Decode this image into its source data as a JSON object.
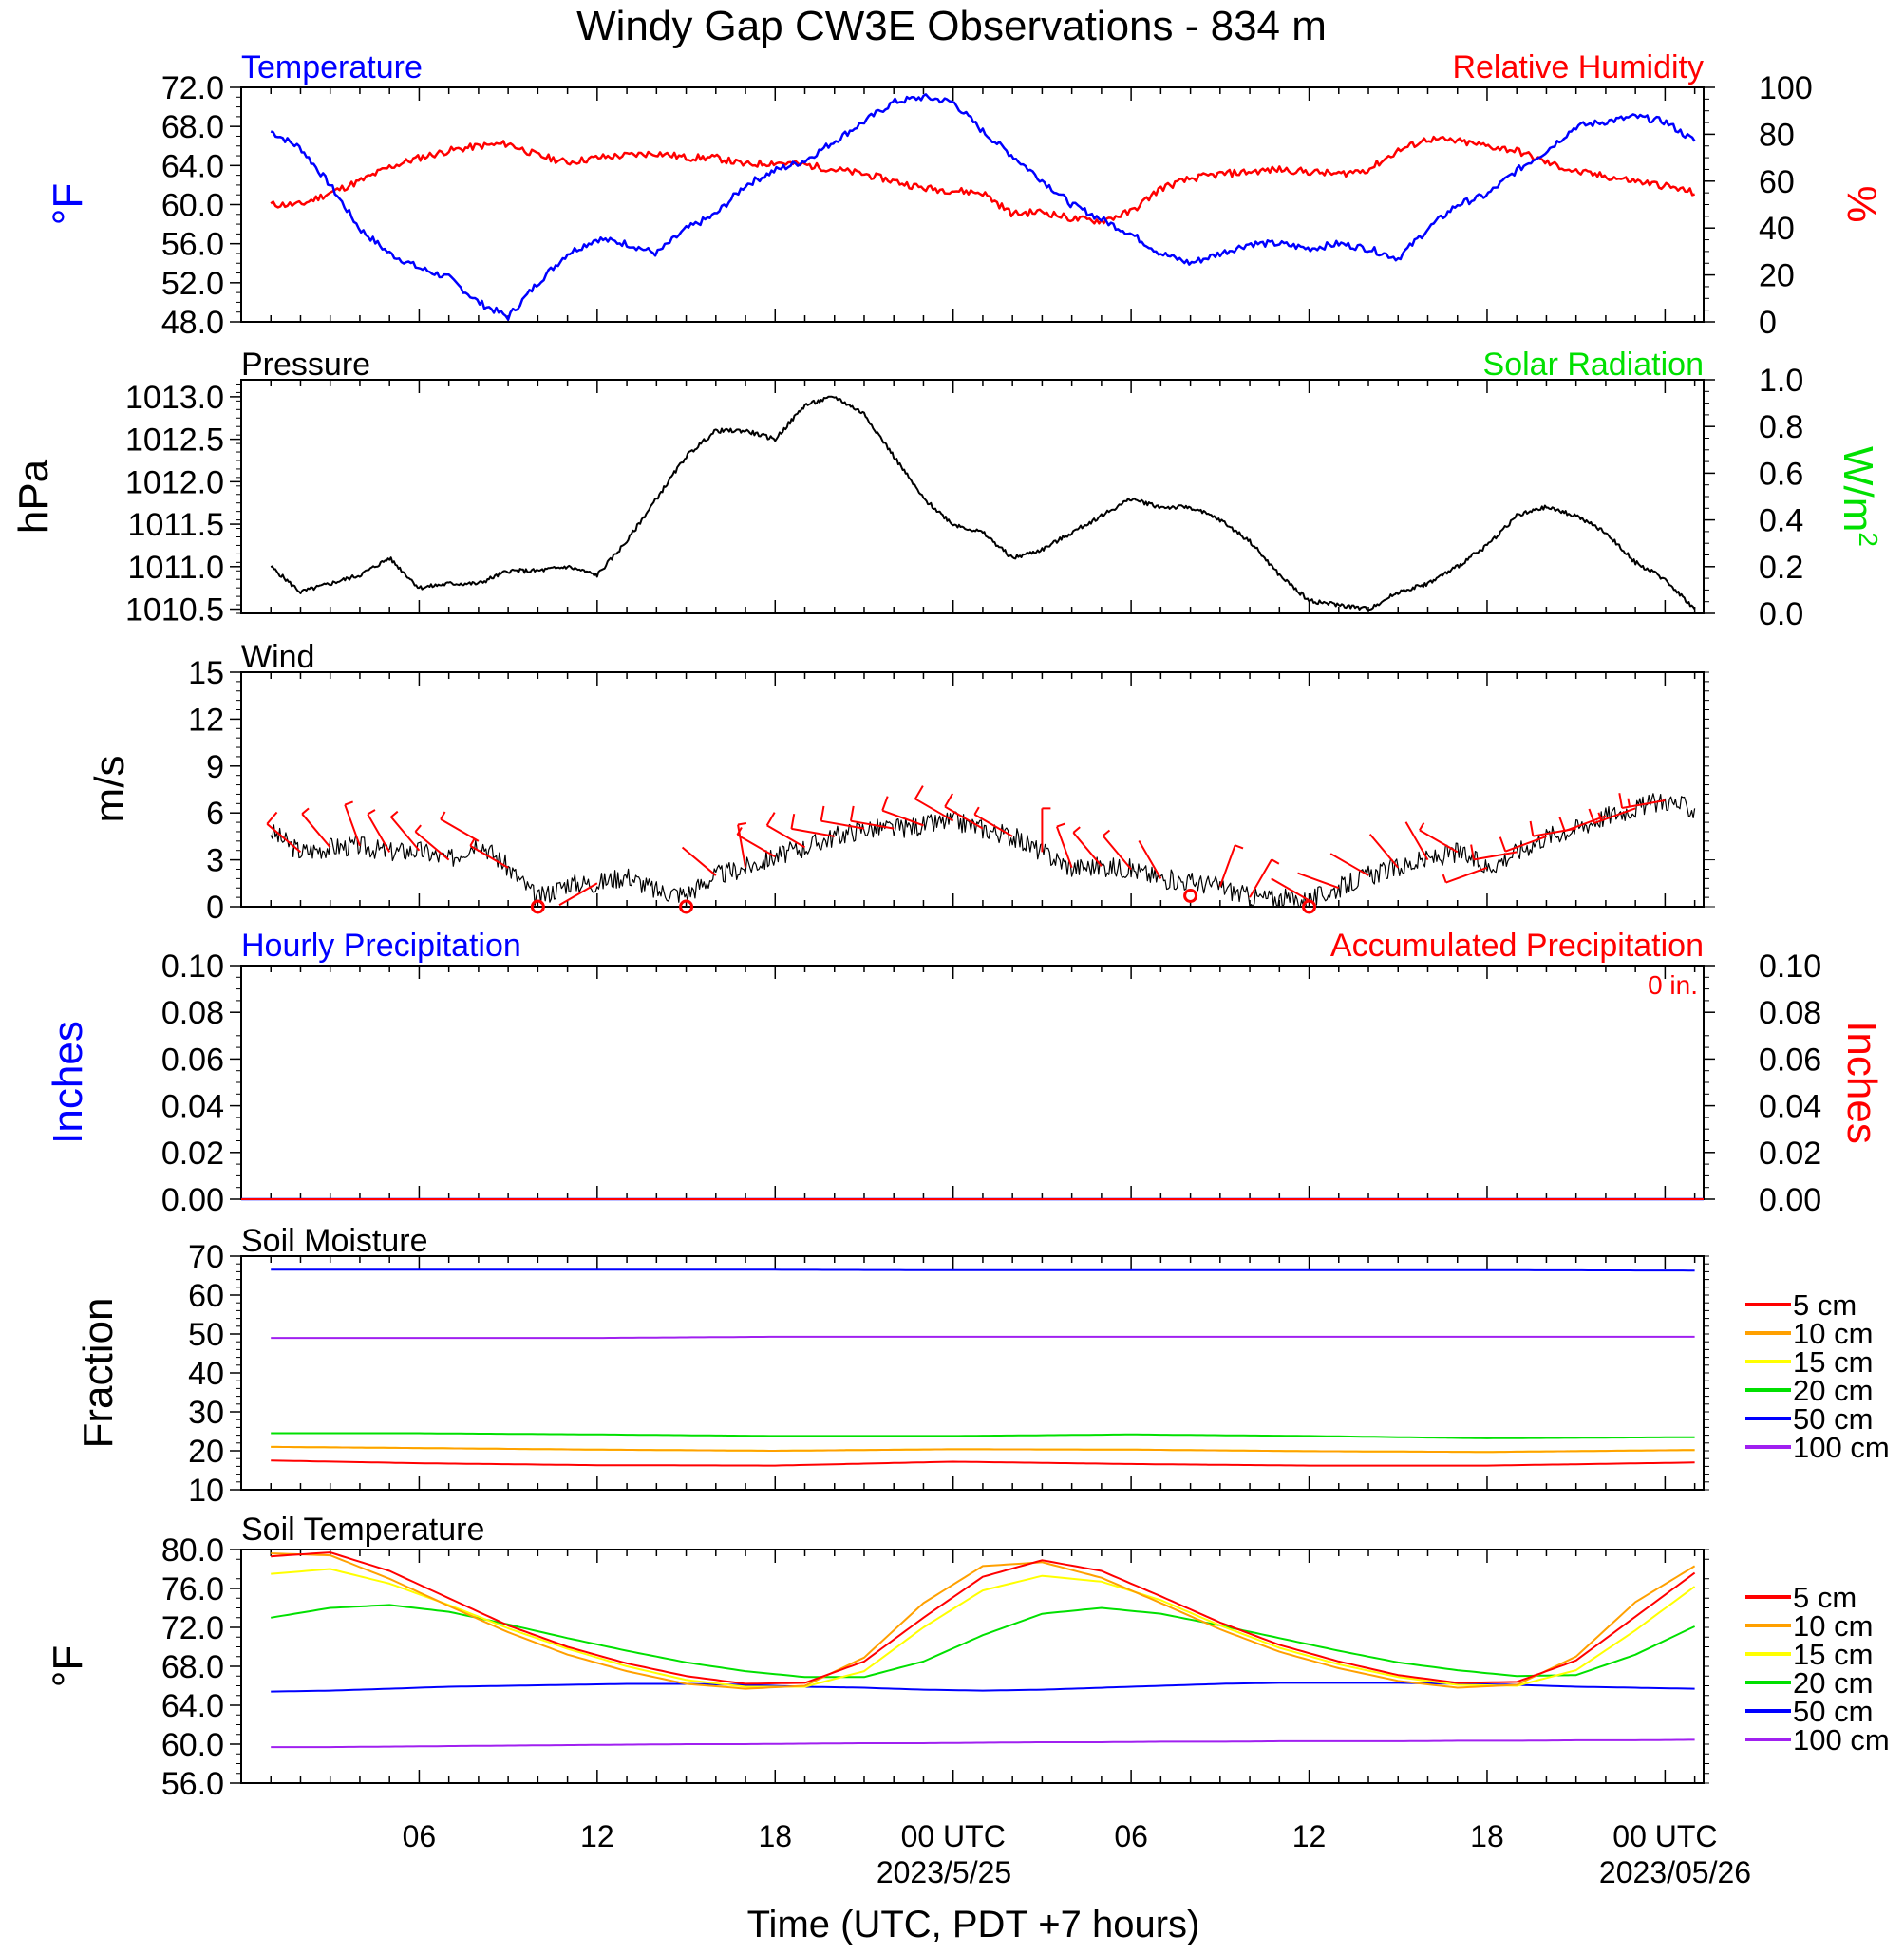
{
  "title": "Windy Gap CW3E Observations - 834 m",
  "x_axis": {
    "label": "Time (UTC, PDT +7 hours)",
    "ticks": [
      "06",
      "12",
      "18",
      "00 UTC",
      "06",
      "12",
      "18",
      "00 UTC"
    ],
    "dates": [
      "2023/5/25",
      "2023/05/26"
    ]
  },
  "colors": {
    "temperature": "#0000ff",
    "humidity": "#ff0000",
    "pressure": "#000000",
    "solar": "#00e000",
    "wind": "#000000",
    "barb": "#ff0000",
    "hourly_precip": "#0000ff",
    "accum_precip": "#ff0000",
    "depth_5": "#ff0000",
    "depth_10": "#ffa000",
    "depth_15": "#ffff00",
    "depth_20": "#00e000",
    "depth_50": "#0000ff",
    "depth_100": "#a020f0"
  },
  "chart_data": [
    {
      "type": "line",
      "title": "Temperature / Relative Humidity",
      "left_label": "Temperature",
      "right_label": "Relative Humidity",
      "ylabel_left": "°F",
      "ylabel_right": "%",
      "left_ticks": [
        "72.0",
        "68.0",
        "64.0",
        "60.0",
        "56.0",
        "52.0",
        "48.0"
      ],
      "right_ticks": [
        "100",
        "80",
        "60",
        "40",
        "20",
        "0"
      ],
      "ylim_left": [
        48,
        72
      ],
      "ylim_right": [
        0,
        100
      ],
      "x_hours": [
        1,
        2,
        3,
        4,
        5,
        6,
        7,
        8,
        9,
        10,
        11,
        12,
        13,
        14,
        15,
        16,
        17,
        18,
        19,
        20,
        21,
        22,
        23,
        24,
        25,
        26,
        27,
        28,
        29,
        30,
        31,
        32,
        33,
        34,
        35,
        36,
        37,
        38,
        39,
        40,
        41,
        42,
        43,
        44,
        45,
        46,
        47,
        48,
        49
      ],
      "series": [
        {
          "name": "Temperature",
          "values": [
            67.5,
            65.8,
            62,
            57.5,
            55,
            53.5,
            52.5,
            50,
            48.5,
            52,
            55,
            56.5,
            56,
            55,
            57.5,
            59,
            62,
            63.5,
            64.5,
            66.5,
            68.5,
            70.5,
            71,
            70.5,
            67.5,
            65,
            62.5,
            60,
            58.5,
            57,
            55,
            54,
            55,
            56,
            56,
            55.5,
            56,
            55.5,
            54.5,
            57.5,
            60,
            61,
            63.5,
            65.5,
            68,
            68.5,
            69,
            68.5,
            66.5
          ]
        },
        {
          "name": "Relative Humidity",
          "values": [
            50,
            50,
            55,
            60,
            66,
            70,
            73,
            75,
            76,
            71,
            68,
            70,
            71,
            72,
            70,
            70,
            67,
            68,
            67,
            65,
            63,
            60,
            57,
            56,
            55,
            46,
            47,
            44,
            43,
            47,
            57,
            61,
            63,
            64,
            65,
            64,
            63,
            65,
            73,
            78,
            77,
            75,
            73,
            68,
            64,
            62,
            60,
            58,
            55
          ]
        }
      ]
    },
    {
      "type": "line",
      "title": "Pressure",
      "left_label": "Pressure",
      "right_label": "Solar Radiation",
      "ylabel_left": "hPa",
      "ylabel_right_base": "W/m",
      "ylabel_right_sup": "2",
      "left_ticks": [
        "1013.0",
        "1012.5",
        "1012.0",
        "1011.5",
        "1011.0",
        "1010.5"
      ],
      "right_ticks": [
        "1.0",
        "0.8",
        "0.6",
        "0.4",
        "0.2",
        "0.0"
      ],
      "ylim_left": [
        1010.45,
        1013.2
      ],
      "ylim_right": [
        0,
        1
      ],
      "x_hours": [
        1,
        2,
        3,
        4,
        5,
        6,
        7,
        8,
        9,
        10,
        11,
        12,
        13,
        14,
        15,
        16,
        17,
        18,
        19,
        20,
        21,
        22,
        23,
        24,
        25,
        26,
        27,
        28,
        29,
        30,
        31,
        32,
        33,
        34,
        35,
        36,
        37,
        38,
        39,
        40,
        41,
        42,
        43,
        44,
        45,
        46,
        47,
        48,
        49
      ],
      "series": [
        {
          "name": "Pressure",
          "values": [
            1011.0,
            1010.7,
            1010.8,
            1010.9,
            1011.1,
            1010.75,
            1010.8,
            1010.8,
            1010.95,
            1010.95,
            1011.0,
            1010.9,
            1011.3,
            1011.8,
            1012.3,
            1012.6,
            1012.6,
            1012.5,
            1012.9,
            1013.0,
            1012.8,
            1012.3,
            1011.8,
            1011.5,
            1011.4,
            1011.1,
            1011.2,
            1011.4,
            1011.6,
            1011.8,
            1011.7,
            1011.7,
            1011.55,
            1011.3,
            1010.9,
            1010.6,
            1010.55,
            1010.5,
            1010.7,
            1010.8,
            1011.0,
            1011.25,
            1011.6,
            1011.7,
            1011.6,
            1011.4,
            1011.05,
            1010.85,
            1010.5
          ]
        }
      ]
    },
    {
      "type": "line",
      "title": "Wind",
      "left_label": "Wind",
      "ylabel_left": "m/s",
      "left_ticks": [
        "15",
        "12",
        "9",
        "6",
        "3",
        "0"
      ],
      "ylim_left": [
        0,
        15
      ],
      "x_hours": [
        1,
        2,
        3,
        4,
        5,
        6,
        7,
        8,
        9,
        10,
        11,
        12,
        13,
        14,
        15,
        16,
        17,
        18,
        19,
        20,
        21,
        22,
        23,
        24,
        25,
        26,
        27,
        28,
        29,
        30,
        31,
        32,
        33,
        34,
        35,
        36,
        37,
        38,
        39,
        40,
        41,
        42,
        43,
        44,
        45,
        46,
        47,
        48,
        49
      ],
      "series": [
        {
          "name": "Wind",
          "values": [
            4.8,
            3.5,
            3.8,
            3.9,
            3.5,
            3.6,
            3.0,
            4.2,
            2.5,
            0.5,
            1.5,
            1.5,
            2.0,
            1.0,
            0.8,
            2.0,
            2.5,
            3.2,
            3.8,
            4.5,
            5.0,
            5.0,
            5.2,
            5.5,
            5.0,
            4.5,
            3.5,
            2.5,
            2.6,
            2.4,
            1.8,
            1.6,
            1.3,
            0.6,
            0.5,
            0.4,
            1.2,
            2.0,
            2.5,
            3.0,
            3.5,
            2.5,
            3.5,
            4.5,
            5.0,
            5.8,
            6.3,
            6.8,
            6.2
          ]
        }
      ],
      "barbs": {
        "hours": [
          2,
          3,
          4,
          5,
          6,
          7,
          8,
          9,
          10,
          12,
          14,
          16,
          17,
          18,
          19,
          20,
          21,
          22,
          23,
          24,
          25,
          26,
          27,
          28,
          29,
          30,
          31,
          32,
          33,
          34,
          35,
          36,
          37,
          38,
          39,
          40,
          41,
          42,
          43,
          44,
          45,
          46,
          47,
          48
        ],
        "speeds": [
          5,
          4.5,
          4,
          4,
          3.5,
          3.5,
          3,
          2.5,
          0,
          2,
          0,
          2,
          2.5,
          4,
          5,
          5.5,
          5.5,
          5.5,
          6,
          6,
          5.5,
          4,
          3,
          3,
          3,
          2.5,
          2,
          0,
          2.5,
          3,
          0,
          2,
          2,
          1.5,
          2,
          2,
          2.5,
          4,
          5,
          6,
          6,
          7,
          7.5,
          7.5
        ],
        "dirs": [
          310,
          320,
          340,
          330,
          320,
          310,
          300,
          300,
          0,
          240,
          0,
          310,
          350,
          300,
          300,
          280,
          280,
          280,
          290,
          300,
          300,
          300,
          360,
          340,
          320,
          320,
          330,
          0,
          20,
          30,
          0,
          300,
          290,
          300,
          320,
          330,
          300,
          250,
          260,
          250,
          260,
          250,
          250,
          260
        ],
        "calm_hours": [
          10,
          15,
          32,
          36
        ]
      }
    },
    {
      "type": "bar",
      "title": "Precipitation",
      "left_label": "Hourly Precipitation",
      "right_label": "Accumulated Precipitation",
      "annotation": "0 in.",
      "ylabel_left": "Inches",
      "ylabel_right": "Inches",
      "left_ticks": [
        "0.10",
        "0.08",
        "0.06",
        "0.04",
        "0.02",
        "0.00"
      ],
      "right_ticks": [
        "0.10",
        "0.08",
        "0.06",
        "0.04",
        "0.02",
        "0.00"
      ],
      "ylim_left": [
        0,
        0.1
      ],
      "ylim_right": [
        0,
        0.1
      ],
      "series": [
        {
          "name": "Hourly Precipitation",
          "values": [
            0
          ]
        },
        {
          "name": "Accumulated Precipitation",
          "values": [
            0
          ]
        }
      ]
    },
    {
      "type": "line",
      "title": "Soil Moisture",
      "left_label": "Soil Moisture",
      "ylabel_left": "Fraction",
      "left_ticks": [
        "70",
        "60",
        "50",
        "40",
        "30",
        "20",
        "10"
      ],
      "ylim_left": [
        10,
        70
      ],
      "x_hours": [
        1,
        6,
        12,
        18,
        24,
        30,
        36,
        42,
        49
      ],
      "legend": [
        "5 cm",
        "10 cm",
        "15 cm",
        "20 cm",
        "50 cm",
        "100 cm"
      ],
      "series": [
        {
          "name": "5 cm",
          "values": [
            17.5,
            16.8,
            16.3,
            16.2,
            17.2,
            16.6,
            16.2,
            16.2,
            17.0
          ]
        },
        {
          "name": "10 cm",
          "values": [
            21.0,
            20.7,
            20.3,
            20.0,
            20.4,
            20.3,
            19.9,
            19.7,
            20.2
          ]
        },
        {
          "name": "15 cm",
          "values": [
            21.0,
            20.7,
            20.3,
            20.0,
            20.4,
            20.3,
            19.9,
            19.7,
            20.2
          ]
        },
        {
          "name": "20 cm",
          "values": [
            24.5,
            24.5,
            24.2,
            23.8,
            23.8,
            24.2,
            23.8,
            23.2,
            23.5
          ]
        },
        {
          "name": "50 cm",
          "values": [
            66.5,
            66.5,
            66.5,
            66.5,
            66.4,
            66.4,
            66.4,
            66.4,
            66.3
          ]
        },
        {
          "name": "100 cm",
          "values": [
            49.0,
            49.0,
            49.0,
            49.3,
            49.3,
            49.3,
            49.3,
            49.3,
            49.3
          ]
        }
      ]
    },
    {
      "type": "line",
      "title": "Soil Temperature",
      "left_label": "Soil Temperature",
      "ylabel_left": "°F",
      "left_ticks": [
        "80.0",
        "76.0",
        "72.0",
        "68.0",
        "64.0",
        "60.0",
        "56.0"
      ],
      "ylim_left": [
        56,
        80
      ],
      "x_hours": [
        1,
        3,
        5,
        7,
        9,
        11,
        13,
        15,
        17,
        19,
        21,
        23,
        25,
        27,
        29,
        31,
        33,
        35,
        37,
        39,
        41,
        43,
        45,
        47,
        49
      ],
      "legend": [
        "5 cm",
        "10 cm",
        "15 cm",
        "20 cm",
        "50 cm",
        "100 cm"
      ],
      "series": [
        {
          "name": "5 cm",
          "values": [
            79.3,
            79.7,
            77.8,
            75.0,
            72.2,
            70.0,
            68.3,
            67.0,
            66.2,
            66.3,
            68.5,
            73.0,
            77.2,
            78.9,
            77.8,
            75.2,
            72.5,
            70.2,
            68.5,
            67.1,
            66.3,
            66.4,
            68.6,
            73.1,
            77.6
          ]
        },
        {
          "name": "10 cm",
          "values": [
            79.6,
            79.4,
            77.0,
            74.2,
            71.5,
            69.2,
            67.5,
            66.2,
            65.7,
            66.0,
            68.9,
            74.5,
            78.3,
            78.7,
            77.1,
            74.5,
            71.8,
            69.5,
            67.8,
            66.5,
            65.8,
            66.1,
            69.0,
            74.6,
            78.3
          ]
        },
        {
          "name": "15 cm",
          "values": [
            77.5,
            78.0,
            76.5,
            74.3,
            71.9,
            69.8,
            68.0,
            66.6,
            65.9,
            65.9,
            67.5,
            72.0,
            75.8,
            77.3,
            76.7,
            74.8,
            72.2,
            69.9,
            68.2,
            66.9,
            66.1,
            66.0,
            67.6,
            71.7,
            76.2
          ]
        },
        {
          "name": "20 cm",
          "values": [
            73.0,
            74.0,
            74.3,
            73.6,
            72.3,
            70.9,
            69.6,
            68.4,
            67.5,
            66.9,
            66.9,
            68.5,
            71.2,
            73.4,
            74.0,
            73.4,
            72.2,
            70.9,
            69.6,
            68.4,
            67.6,
            67.0,
            67.1,
            69.2,
            72.1
          ]
        },
        {
          "name": "50 cm",
          "values": [
            65.4,
            65.5,
            65.7,
            65.9,
            66.0,
            66.1,
            66.2,
            66.2,
            66.1,
            65.9,
            65.8,
            65.6,
            65.5,
            65.6,
            65.8,
            66.0,
            66.2,
            66.3,
            66.3,
            66.3,
            66.2,
            66.1,
            65.9,
            65.8,
            65.7
          ]
        },
        {
          "name": "100 cm",
          "values": [
            59.7,
            59.7,
            59.75,
            59.8,
            59.85,
            59.9,
            59.95,
            60.0,
            60.0,
            60.05,
            60.1,
            60.1,
            60.15,
            60.2,
            60.2,
            60.25,
            60.25,
            60.3,
            60.3,
            60.3,
            60.35,
            60.35,
            60.4,
            60.4,
            60.45
          ]
        }
      ]
    }
  ]
}
